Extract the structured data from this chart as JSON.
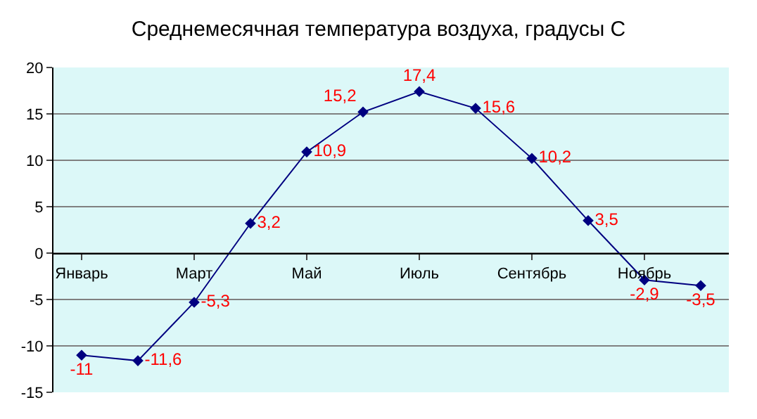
{
  "chart_data": {
    "type": "line",
    "title": "Среднемесячная температура воздуха, градусы С",
    "categories": [
      "Январь",
      null,
      "Март",
      null,
      "Май",
      null,
      "Июль",
      null,
      "Сентябрь",
      null,
      "Ноябрь",
      null
    ],
    "series": [
      {
        "color": "#000080",
        "values": [
          -11,
          -11.6,
          -5.3,
          3.2,
          10.9,
          15.2,
          17.4,
          15.6,
          10.2,
          3.5,
          -2.9,
          -3.5
        ],
        "value_labels": [
          "-11",
          "-11,6",
          "-5,3",
          "3,2",
          "10,9",
          "15,2",
          "17,4",
          "15,6",
          "10,2",
          "3,5",
          "-2,9",
          "-3,5"
        ]
      }
    ],
    "ylim": [
      -15,
      20
    ],
    "yticks": [
      -15,
      -10,
      -5,
      0,
      5,
      10,
      15,
      20
    ],
    "grid": "y",
    "legend": false,
    "marker": "diamond",
    "line_style": "solid"
  }
}
